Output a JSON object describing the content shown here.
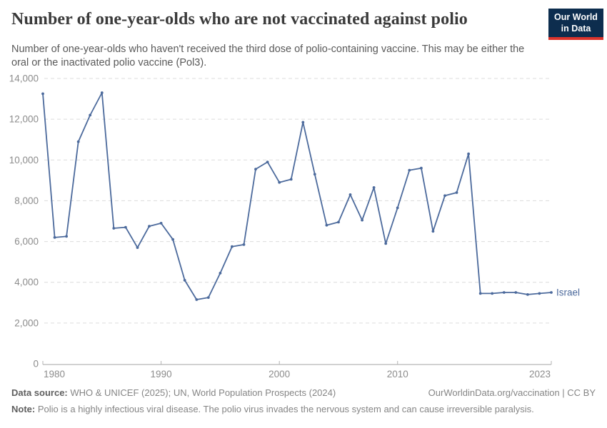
{
  "header": {
    "title": "Number of one-year-olds who are not vaccinated against polio",
    "subtitle": "Number of one-year-olds who haven't received the third dose of polio-containing vaccine. This may be either the oral or the inactivated polio vaccine (Pol3).",
    "logo": {
      "line1": "Our World",
      "line2": "in Data"
    }
  },
  "chart_data": {
    "type": "line",
    "title": "Number of one-year-olds who are not vaccinated against polio",
    "x": [
      1980,
      1981,
      1982,
      1983,
      1984,
      1985,
      1986,
      1987,
      1988,
      1989,
      1990,
      1991,
      1992,
      1993,
      1994,
      1995,
      1996,
      1997,
      1998,
      1999,
      2000,
      2001,
      2002,
      2003,
      2004,
      2005,
      2006,
      2007,
      2008,
      2009,
      2010,
      2011,
      2012,
      2013,
      2014,
      2015,
      2016,
      2017,
      2018,
      2019,
      2020,
      2021,
      2022,
      2023
    ],
    "series": [
      {
        "name": "Israel",
        "color": "#4c6a9c",
        "values": [
          13250,
          6200,
          6250,
          10900,
          12200,
          13300,
          6650,
          6700,
          5700,
          6750,
          6900,
          6100,
          4100,
          3150,
          3250,
          4450,
          5750,
          5850,
          9550,
          9900,
          8900,
          9050,
          11850,
          9300,
          6800,
          6950,
          8300,
          7050,
          8650,
          5900,
          7650,
          9500,
          9600,
          6500,
          8250,
          8400,
          10300,
          3450,
          3450,
          3500,
          3500,
          3400,
          3450,
          3500
        ]
      }
    ],
    "x_ticks": [
      1980,
      1990,
      2000,
      2010,
      2023
    ],
    "y_ticks": [
      0,
      2000,
      4000,
      6000,
      8000,
      10000,
      12000,
      14000
    ],
    "ylim": [
      0,
      14000
    ],
    "xlim": [
      1980,
      2023
    ],
    "xlabel": "",
    "ylabel": "",
    "grid": "horizontal-dashed",
    "legend_position": "end-of-line",
    "entity_label": "Israel"
  },
  "footer": {
    "datasource_label": "Data source:",
    "datasource_text": " WHO & UNICEF (2025); UN, World Population Prospects (2024)",
    "rights": "OurWorldinData.org/vaccination | CC BY",
    "note_label": "Note:",
    "note_text": " Polio is a highly infectious viral disease. The polio virus invades the nervous system and can cause irreversible paralysis."
  },
  "colors": {
    "line": "#4c6a9c",
    "logo_navy": "#0d2d4e",
    "logo_red": "#dc342c",
    "gridline": "#dcdcdc",
    "axis": "#a3a3a3",
    "tick_label": "#8c8c8c",
    "title_text": "#3a3a3a",
    "subtitle_text": "#595959",
    "footer_text": "#858585"
  }
}
